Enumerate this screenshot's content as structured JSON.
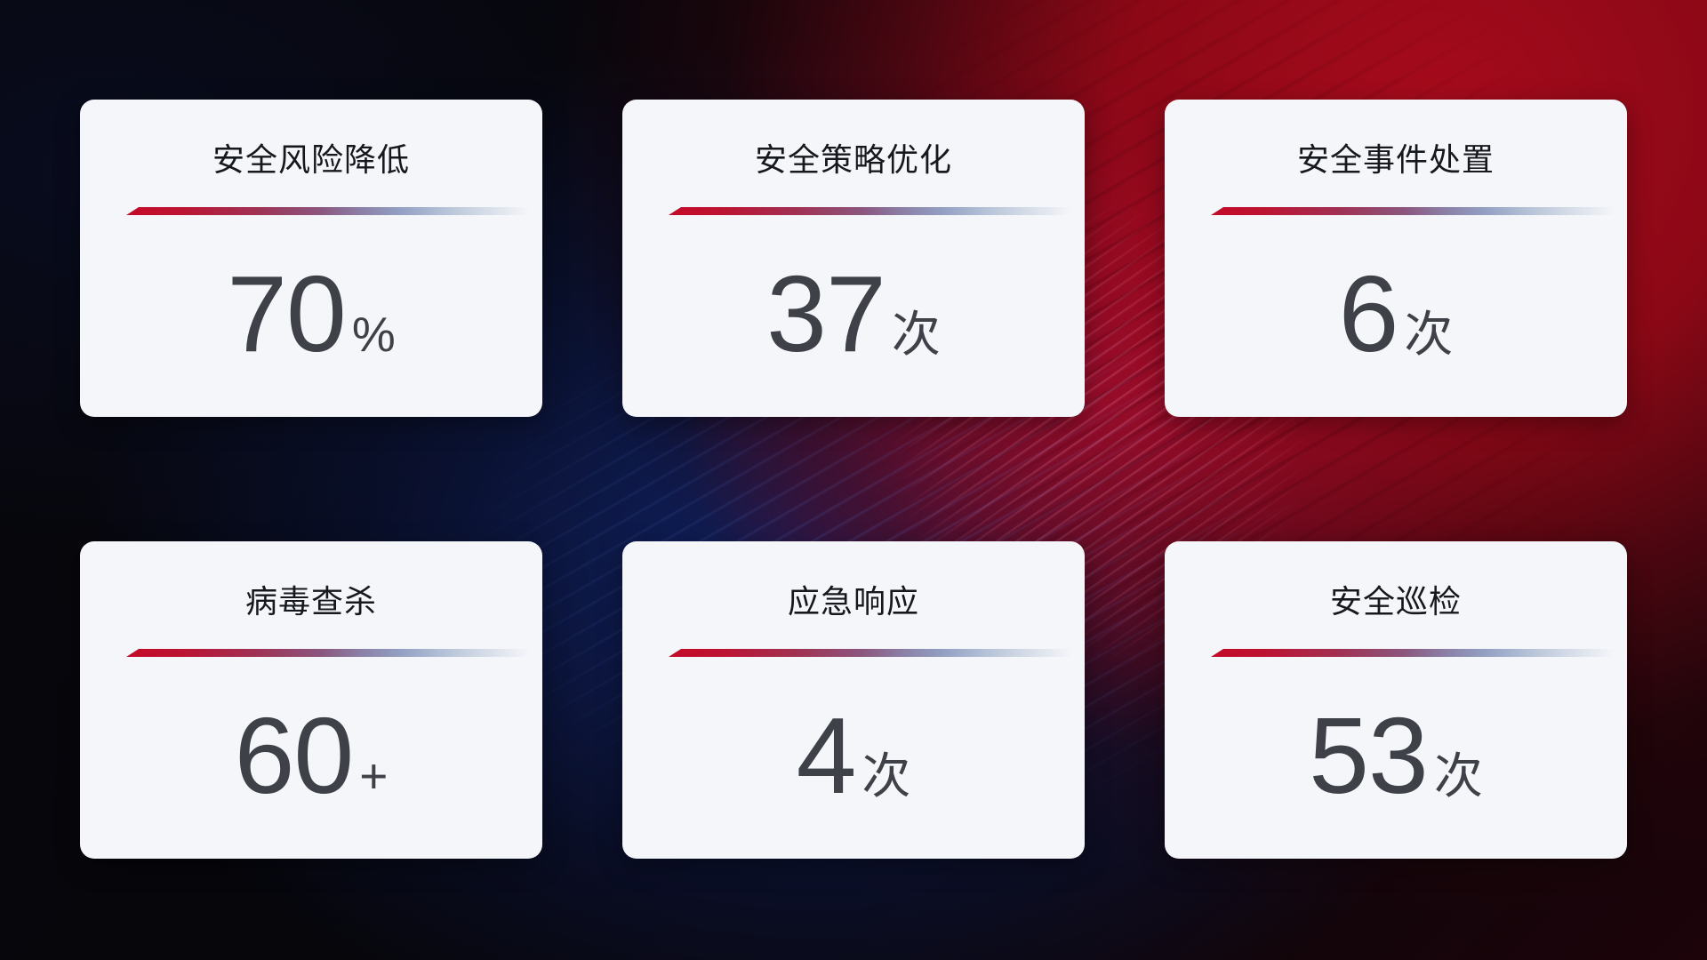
{
  "colors": {
    "card_bg": "#f5f6fa",
    "title_color": "#15181d",
    "value_color": "#3e4147",
    "accent_red": "#c40a28",
    "bg_red": "#8c0816",
    "bg_red_bright": "#a60b1c"
  },
  "cards": [
    {
      "title": "安全风险降低",
      "value": "70",
      "unit": "%"
    },
    {
      "title": "安全策略优化",
      "value": "37",
      "unit": "次"
    },
    {
      "title": "安全事件处置",
      "value": "6",
      "unit": "次"
    },
    {
      "title": "病毒查杀",
      "value": "60",
      "unit": "+"
    },
    {
      "title": "应急响应",
      "value": "4",
      "unit": "次"
    },
    {
      "title": "安全巡检",
      "value": "53",
      "unit": "次"
    }
  ]
}
